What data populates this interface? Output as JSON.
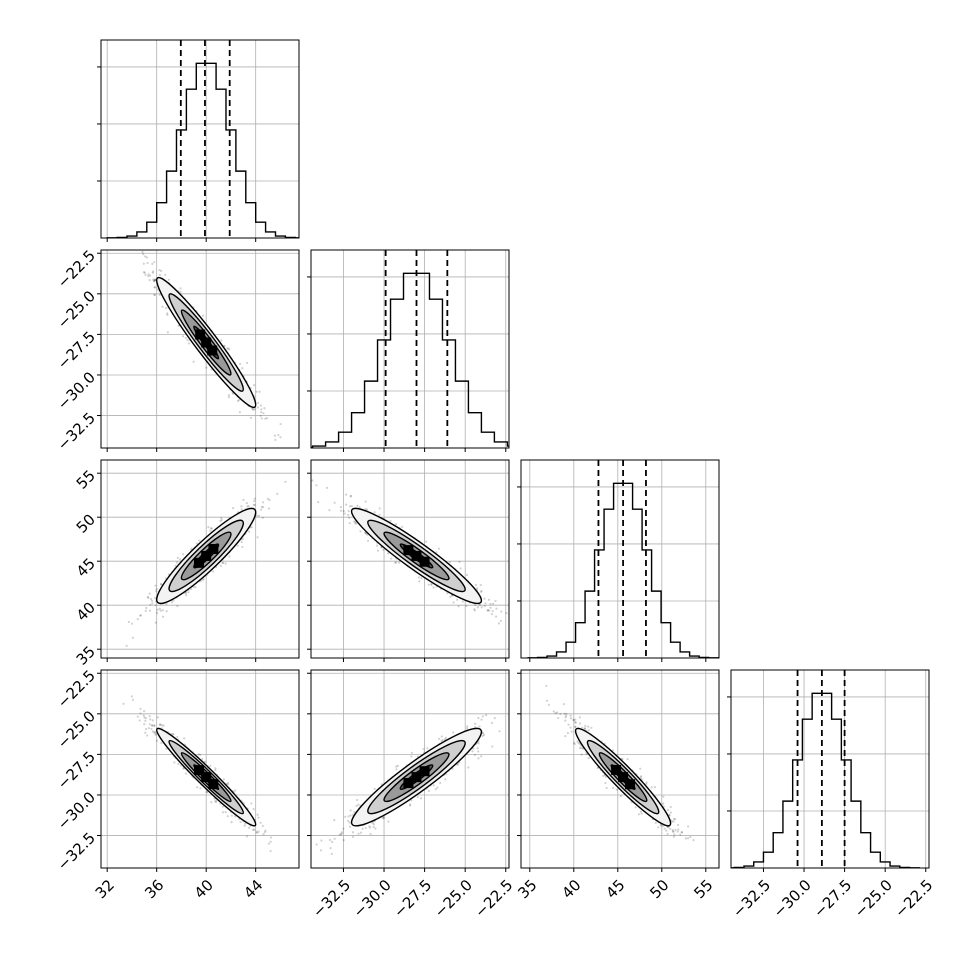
{
  "chart_data": {
    "type": "corner",
    "description_free": true,
    "parameters": [
      {
        "range": [
          31.5,
          47.5
        ],
        "ticks": [
          32,
          36,
          40,
          44
        ],
        "tick_labels": [
          "32",
          "36",
          "40",
          "44"
        ],
        "mean": 40.0,
        "sd": 2.0,
        "quantiles": [
          37.95,
          39.9,
          41.9
        ]
      },
      {
        "range": [
          -34.5,
          -22.3
        ],
        "ticks": [
          -32.5,
          -30.0,
          -27.5,
          -25.0,
          -22.5
        ],
        "tick_labels": [
          "−32.5",
          "−30.0",
          "−27.5",
          "−25.0",
          "−22.5"
        ],
        "mean": -28.0,
        "sd": 2.0,
        "quantiles": [
          -29.9,
          -28.0,
          -26.1
        ]
      },
      {
        "range": [
          34.0,
          56.5
        ],
        "ticks": [
          35,
          40,
          45,
          50,
          55
        ],
        "tick_labels": [
          "35",
          "40",
          "45",
          "50",
          "55"
        ],
        "mean": 45.6,
        "sd": 2.7,
        "quantiles": [
          42.8,
          45.6,
          48.2
        ]
      },
      {
        "range": [
          -34.5,
          -22.3
        ],
        "ticks": [
          -32.5,
          -30.0,
          -27.5,
          -25.0,
          -22.5
        ],
        "tick_labels": [
          "−32.5",
          "−30.0",
          "−27.5",
          "−25.0",
          "−22.5"
        ],
        "mean": -28.9,
        "sd": 1.5,
        "quantiles": [
          -30.4,
          -28.9,
          -27.5
        ]
      }
    ],
    "correlations": [
      {
        "row": 1,
        "col": 0,
        "rho": -0.96
      },
      {
        "row": 2,
        "col": 0,
        "rho": 0.92
      },
      {
        "row": 2,
        "col": 1,
        "rho": -0.94
      },
      {
        "row": 3,
        "col": 0,
        "rho": -0.97
      },
      {
        "row": 3,
        "col": 1,
        "rho": 0.93
      },
      {
        "row": 3,
        "col": 2,
        "rho": -0.95
      }
    ],
    "histogram_bins": 20,
    "grid": true,
    "samples_shown_as": "scatter points with density contours"
  }
}
